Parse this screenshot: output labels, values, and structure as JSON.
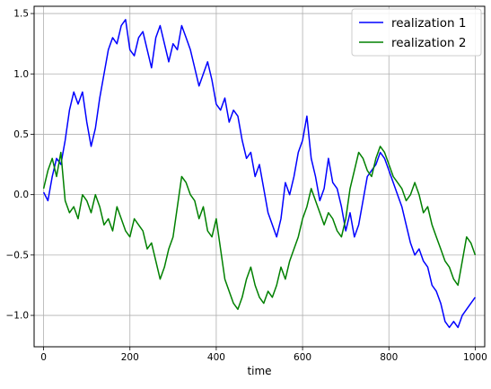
{
  "chart_data": {
    "type": "line",
    "xlabel": "time",
    "ylabel": "",
    "title": "",
    "xlim": [
      -22,
      1022
    ],
    "ylim": [
      -1.26,
      1.56
    ],
    "grid": true,
    "legend_position": "top-right",
    "x_ticks": [
      0,
      200,
      400,
      600,
      800,
      1000
    ],
    "x_tick_labels": [
      "0",
      "200",
      "400",
      "600",
      "800",
      "1000"
    ],
    "y_ticks": [
      -1.0,
      -0.5,
      0.0,
      0.5,
      1.0,
      1.5
    ],
    "y_tick_labels": [
      "−1.0",
      "−0.5",
      "0.0",
      "0.5",
      "1.0",
      "1.5"
    ],
    "series": [
      {
        "name": "realization 1",
        "color": "#0000ff",
        "x": [
          0,
          10,
          20,
          30,
          40,
          50,
          60,
          70,
          80,
          90,
          100,
          110,
          120,
          130,
          140,
          150,
          160,
          170,
          180,
          190,
          200,
          210,
          220,
          230,
          240,
          250,
          260,
          270,
          280,
          290,
          300,
          310,
          320,
          330,
          340,
          350,
          360,
          370,
          380,
          390,
          400,
          410,
          420,
          430,
          440,
          450,
          460,
          470,
          480,
          490,
          500,
          510,
          520,
          530,
          540,
          550,
          560,
          570,
          580,
          590,
          600,
          610,
          620,
          630,
          640,
          650,
          660,
          670,
          680,
          690,
          700,
          710,
          720,
          730,
          740,
          750,
          760,
          770,
          780,
          790,
          800,
          810,
          820,
          830,
          840,
          850,
          860,
          870,
          880,
          890,
          900,
          910,
          920,
          930,
          940,
          950,
          960,
          970,
          980,
          990,
          1000
        ],
        "y": [
          0.02,
          -0.05,
          0.15,
          0.3,
          0.25,
          0.45,
          0.7,
          0.85,
          0.75,
          0.85,
          0.6,
          0.4,
          0.55,
          0.8,
          1.0,
          1.2,
          1.3,
          1.25,
          1.4,
          1.45,
          1.2,
          1.15,
          1.3,
          1.35,
          1.2,
          1.05,
          1.3,
          1.4,
          1.25,
          1.1,
          1.25,
          1.2,
          1.4,
          1.3,
          1.2,
          1.05,
          0.9,
          1.0,
          1.1,
          0.95,
          0.75,
          0.7,
          0.8,
          0.6,
          0.7,
          0.65,
          0.45,
          0.3,
          0.35,
          0.15,
          0.25,
          0.05,
          -0.15,
          -0.25,
          -0.35,
          -0.2,
          0.1,
          0.0,
          0.15,
          0.35,
          0.45,
          0.65,
          0.3,
          0.15,
          -0.05,
          0.05,
          0.3,
          0.1,
          0.05,
          -0.1,
          -0.3,
          -0.15,
          -0.35,
          -0.25,
          -0.05,
          0.15,
          0.2,
          0.25,
          0.35,
          0.3,
          0.2,
          0.1,
          0.0,
          -0.1,
          -0.25,
          -0.4,
          -0.5,
          -0.45,
          -0.55,
          -0.6,
          -0.75,
          -0.8,
          -0.9,
          -1.05,
          -1.1,
          -1.05,
          -1.1,
          -1.0,
          -0.95,
          -0.9,
          -0.85
        ]
      },
      {
        "name": "realization 2",
        "color": "#008000",
        "x": [
          0,
          10,
          20,
          30,
          40,
          50,
          60,
          70,
          80,
          90,
          100,
          110,
          120,
          130,
          140,
          150,
          160,
          170,
          180,
          190,
          200,
          210,
          220,
          230,
          240,
          250,
          260,
          270,
          280,
          290,
          300,
          310,
          320,
          330,
          340,
          350,
          360,
          370,
          380,
          390,
          400,
          410,
          420,
          430,
          440,
          450,
          460,
          470,
          480,
          490,
          500,
          510,
          520,
          530,
          540,
          550,
          560,
          570,
          580,
          590,
          600,
          610,
          620,
          630,
          640,
          650,
          660,
          670,
          680,
          690,
          700,
          710,
          720,
          730,
          740,
          750,
          760,
          770,
          780,
          790,
          800,
          810,
          820,
          830,
          840,
          850,
          860,
          870,
          880,
          890,
          900,
          910,
          920,
          930,
          940,
          950,
          960,
          970,
          980,
          990,
          1000
        ],
        "y": [
          0.05,
          0.2,
          0.3,
          0.15,
          0.35,
          -0.05,
          -0.15,
          -0.1,
          -0.2,
          0.0,
          -0.05,
          -0.15,
          0.0,
          -0.1,
          -0.25,
          -0.2,
          -0.3,
          -0.1,
          -0.2,
          -0.3,
          -0.35,
          -0.2,
          -0.25,
          -0.3,
          -0.45,
          -0.4,
          -0.55,
          -0.7,
          -0.6,
          -0.45,
          -0.35,
          -0.1,
          0.15,
          0.1,
          0.0,
          -0.05,
          -0.2,
          -0.1,
          -0.3,
          -0.35,
          -0.2,
          -0.45,
          -0.7,
          -0.8,
          -0.9,
          -0.95,
          -0.85,
          -0.7,
          -0.6,
          -0.75,
          -0.85,
          -0.9,
          -0.8,
          -0.85,
          -0.75,
          -0.6,
          -0.7,
          -0.55,
          -0.45,
          -0.35,
          -0.2,
          -0.1,
          0.05,
          -0.05,
          -0.15,
          -0.25,
          -0.15,
          -0.2,
          -0.3,
          -0.35,
          -0.2,
          0.05,
          0.2,
          0.35,
          0.3,
          0.2,
          0.15,
          0.3,
          0.4,
          0.35,
          0.25,
          0.15,
          0.1,
          0.05,
          -0.05,
          0.0,
          0.1,
          0.0,
          -0.15,
          -0.1,
          -0.25,
          -0.35,
          -0.45,
          -0.55,
          -0.6,
          -0.7,
          -0.75,
          -0.55,
          -0.35,
          -0.4,
          -0.5
        ]
      }
    ]
  }
}
